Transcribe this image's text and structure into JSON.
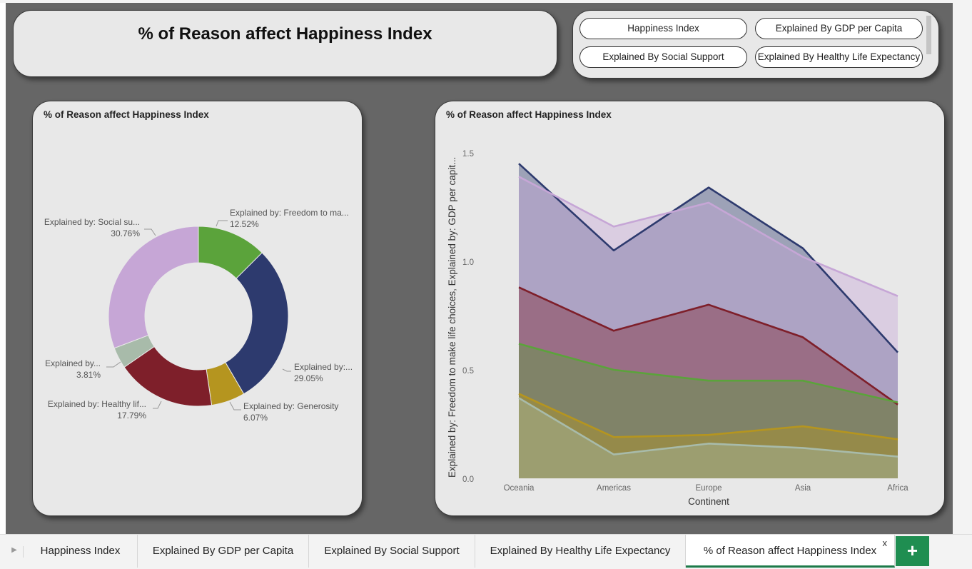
{
  "page": {
    "title": "% of Reason affect Happiness Index"
  },
  "nav_buttons": [
    "Happiness Index",
    "Explained By GDP per Capita",
    "Explained By Social Support",
    "Explained By Healthy Life Expectancy"
  ],
  "donut": {
    "title": "% of Reason affect Happiness Index",
    "labels": [
      {
        "name": "Explained by: Freedom to ma...",
        "pct": "12.52%"
      },
      {
        "name": "Explained by:...",
        "pct": "29.05%"
      },
      {
        "name": "Explained by: Generosity",
        "pct": "6.07%"
      },
      {
        "name": "Explained by: Healthy lif...",
        "pct": "17.79%"
      },
      {
        "name": "Explained by...",
        "pct": "3.81%"
      },
      {
        "name": "Explained by: Social su...",
        "pct": "30.76%"
      }
    ]
  },
  "area": {
    "title": "% of Reason affect Happiness Index",
    "ylabel": "Explained by: Freedom to make life choices, Explained by: GDP per capit...",
    "xlabel": "Continent",
    "yticks": [
      "0.0",
      "0.5",
      "1.0",
      "1.5"
    ]
  },
  "chart_data": [
    {
      "type": "pie",
      "title": "% of Reason affect Happiness Index",
      "values": [
        12.52,
        29.05,
        6.07,
        17.79,
        3.81,
        30.76
      ],
      "colors": [
        "#5ba33b",
        "#2d3a6e",
        "#b5951f",
        "#7e1f2a",
        "#a8bbaa",
        "#c6a6d6"
      ]
    },
    {
      "type": "area",
      "title": "% of Reason affect Happiness Index",
      "xlabel": "Continent",
      "ylabel": "Explained by: Freedom to make life choices, Explained by: GDP per capit...",
      "categories": [
        "Oceania",
        "Americas",
        "Europe",
        "Asia",
        "Africa"
      ],
      "ylim": [
        0,
        1.5
      ],
      "grid": false,
      "series": [
        {
          "values": [
            1.45,
            1.05,
            1.34,
            1.06,
            0.58
          ],
          "color": "#2d3a6e"
        },
        {
          "values": [
            1.39,
            1.16,
            1.27,
            1.02,
            0.84
          ],
          "color": "#c6a6d6"
        },
        {
          "values": [
            0.88,
            0.68,
            0.8,
            0.65,
            0.34
          ],
          "color": "#7e1f2a"
        },
        {
          "values": [
            0.62,
            0.5,
            0.45,
            0.45,
            0.35
          ],
          "color": "#5ba33b"
        },
        {
          "values": [
            0.39,
            0.19,
            0.2,
            0.24,
            0.18
          ],
          "color": "#b5951f"
        },
        {
          "values": [
            0.37,
            0.11,
            0.16,
            0.14,
            0.1
          ],
          "color": "#a8bbaa"
        }
      ]
    }
  ],
  "tabs": [
    "Happiness Index",
    "Explained By GDP per Capita",
    "Explained By Social Support",
    "Explained By Healthy Life Expectancy",
    "% of Reason affect Happiness Index"
  ],
  "tab_close": "x",
  "add_tab": "+"
}
